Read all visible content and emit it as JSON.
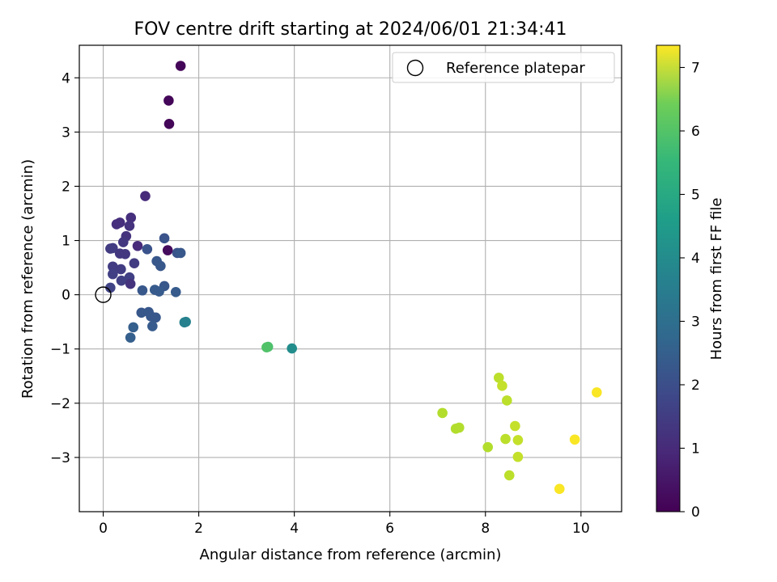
{
  "chart_data": {
    "type": "scatter",
    "title": "FOV centre drift starting at 2024/06/01 21:34:41",
    "xlabel": "Angular distance from reference (arcmin)",
    "ylabel": "Rotation from reference (arcmin)",
    "xlim": [
      -0.5,
      10.85
    ],
    "ylim": [
      -4.0,
      4.6
    ],
    "x_ticks": [
      0,
      2,
      4,
      6,
      8,
      10
    ],
    "y_ticks": [
      -3,
      -2,
      -1,
      0,
      1,
      2,
      3,
      4
    ],
    "y_tick_labels": [
      "−3",
      "−2",
      "−1",
      "0",
      "1",
      "2",
      "3",
      "4"
    ],
    "grid": true,
    "legend": {
      "position": "top-right",
      "label": "Reference platepar"
    },
    "reference_point": {
      "x": 0,
      "y": 0
    },
    "colorbar": {
      "label": "Hours from first FF file",
      "range": [
        0,
        7.35
      ],
      "ticks": [
        0,
        1,
        2,
        3,
        4,
        5,
        6,
        7
      ],
      "colormap": "viridis"
    },
    "points": [
      {
        "x": 1.62,
        "y": 4.22,
        "h": 0.1
      },
      {
        "x": 1.37,
        "y": 3.58,
        "h": 0.1
      },
      {
        "x": 1.38,
        "y": 3.15,
        "h": 0.1
      },
      {
        "x": 1.35,
        "y": 0.82,
        "h": 0.2
      },
      {
        "x": 0.88,
        "y": 1.82,
        "h": 0.9
      },
      {
        "x": 0.28,
        "y": 1.3,
        "h": 1.0
      },
      {
        "x": 0.35,
        "y": 1.33,
        "h": 1.0
      },
      {
        "x": 0.58,
        "y": 1.42,
        "h": 1.0
      },
      {
        "x": 0.55,
        "y": 1.27,
        "h": 1.1
      },
      {
        "x": 0.48,
        "y": 1.08,
        "h": 1.1
      },
      {
        "x": 0.42,
        "y": 0.97,
        "h": 1.2
      },
      {
        "x": 0.72,
        "y": 0.9,
        "h": 0.9
      },
      {
        "x": 0.15,
        "y": 0.85,
        "h": 1.3
      },
      {
        "x": 0.2,
        "y": 0.86,
        "h": 1.3
      },
      {
        "x": 0.35,
        "y": 0.76,
        "h": 1.2
      },
      {
        "x": 0.46,
        "y": 0.75,
        "h": 1.2
      },
      {
        "x": 0.2,
        "y": 0.52,
        "h": 1.3
      },
      {
        "x": 0.65,
        "y": 0.58,
        "h": 1.3
      },
      {
        "x": 0.37,
        "y": 0.47,
        "h": 1.3
      },
      {
        "x": 0.2,
        "y": 0.38,
        "h": 1.4
      },
      {
        "x": 0.55,
        "y": 0.32,
        "h": 1.4
      },
      {
        "x": 0.38,
        "y": 0.26,
        "h": 1.4
      },
      {
        "x": 0.57,
        "y": 0.2,
        "h": 1.1
      },
      {
        "x": 0.15,
        "y": 0.13,
        "h": 1.5
      },
      {
        "x": 1.28,
        "y": 1.04,
        "h": 1.9
      },
      {
        "x": 0.92,
        "y": 0.84,
        "h": 1.9
      },
      {
        "x": 1.55,
        "y": 0.77,
        "h": 1.9
      },
      {
        "x": 1.62,
        "y": 0.77,
        "h": 2.0
      },
      {
        "x": 1.12,
        "y": 0.62,
        "h": 2.0
      },
      {
        "x": 1.2,
        "y": 0.53,
        "h": 2.0
      },
      {
        "x": 1.28,
        "y": 0.16,
        "h": 2.0
      },
      {
        "x": 0.82,
        "y": 0.08,
        "h": 2.0
      },
      {
        "x": 1.08,
        "y": 0.09,
        "h": 2.1
      },
      {
        "x": 1.17,
        "y": 0.06,
        "h": 2.1
      },
      {
        "x": 1.52,
        "y": 0.05,
        "h": 2.1
      },
      {
        "x": 0.8,
        "y": -0.33,
        "h": 2.0
      },
      {
        "x": 0.95,
        "y": -0.32,
        "h": 2.0
      },
      {
        "x": 1.0,
        "y": -0.4,
        "h": 2.0
      },
      {
        "x": 1.1,
        "y": -0.42,
        "h": 2.0
      },
      {
        "x": 0.63,
        "y": -0.6,
        "h": 2.2
      },
      {
        "x": 1.03,
        "y": -0.58,
        "h": 2.1
      },
      {
        "x": 0.57,
        "y": -0.79,
        "h": 2.2
      },
      {
        "x": 1.73,
        "y": -0.5,
        "h": 3.3
      },
      {
        "x": 1.7,
        "y": -0.51,
        "h": 3.2
      },
      {
        "x": 3.45,
        "y": -0.96,
        "h": 5.2
      },
      {
        "x": 3.42,
        "y": -0.97,
        "h": 5.3
      },
      {
        "x": 3.95,
        "y": -0.99,
        "h": 3.6
      },
      {
        "x": 8.28,
        "y": -1.53,
        "h": 6.6
      },
      {
        "x": 8.35,
        "y": -1.68,
        "h": 6.7
      },
      {
        "x": 8.45,
        "y": -1.95,
        "h": 6.6
      },
      {
        "x": 10.33,
        "y": -1.8,
        "h": 7.3
      },
      {
        "x": 7.1,
        "y": -2.18,
        "h": 6.5
      },
      {
        "x": 7.38,
        "y": -2.47,
        "h": 6.5
      },
      {
        "x": 7.45,
        "y": -2.45,
        "h": 6.5
      },
      {
        "x": 8.62,
        "y": -2.42,
        "h": 6.7
      },
      {
        "x": 8.42,
        "y": -2.66,
        "h": 6.6
      },
      {
        "x": 8.68,
        "y": -2.68,
        "h": 6.7
      },
      {
        "x": 9.87,
        "y": -2.67,
        "h": 7.3
      },
      {
        "x": 8.05,
        "y": -2.81,
        "h": 6.5
      },
      {
        "x": 8.68,
        "y": -2.99,
        "h": 6.7
      },
      {
        "x": 8.5,
        "y": -3.33,
        "h": 6.6
      },
      {
        "x": 9.55,
        "y": -3.58,
        "h": 7.3
      }
    ]
  }
}
